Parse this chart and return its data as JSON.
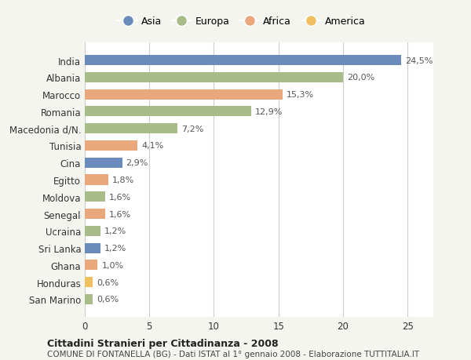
{
  "categories": [
    "India",
    "Albania",
    "Marocco",
    "Romania",
    "Macedonia d/N.",
    "Tunisia",
    "Cina",
    "Egitto",
    "Moldova",
    "Senegal",
    "Ucraina",
    "Sri Lanka",
    "Ghana",
    "Honduras",
    "San Marino"
  ],
  "values": [
    24.5,
    20.0,
    15.3,
    12.9,
    7.2,
    4.1,
    2.9,
    1.8,
    1.6,
    1.6,
    1.2,
    1.2,
    1.0,
    0.6,
    0.6
  ],
  "labels": [
    "24,5%",
    "20,0%",
    "15,3%",
    "12,9%",
    "7,2%",
    "4,1%",
    "2,9%",
    "1,8%",
    "1,6%",
    "1,6%",
    "1,2%",
    "1,2%",
    "1,0%",
    "0,6%",
    "0,6%"
  ],
  "continent": [
    "Asia",
    "Europa",
    "Africa",
    "Europa",
    "Europa",
    "Africa",
    "Asia",
    "Africa",
    "Europa",
    "Africa",
    "Europa",
    "Asia",
    "Africa",
    "America",
    "Europa"
  ],
  "colors": {
    "Asia": "#6b8cba",
    "Europa": "#a8bc8a",
    "Africa": "#e8a87c",
    "America": "#f0c060"
  },
  "legend_order": [
    "Asia",
    "Europa",
    "Africa",
    "America"
  ],
  "title1": "Cittadini Stranieri per Cittadinanza - 2008",
  "title2": "COMUNE DI FONTANELLA (BG) - Dati ISTAT al 1° gennaio 2008 - Elaborazione TUTTITALIA.IT",
  "xlim": [
    0,
    27
  ],
  "xticks": [
    0,
    5,
    10,
    15,
    20,
    25
  ],
  "background_color": "#f5f5f0",
  "bar_background": "#ffffff",
  "grid_color": "#cccccc"
}
